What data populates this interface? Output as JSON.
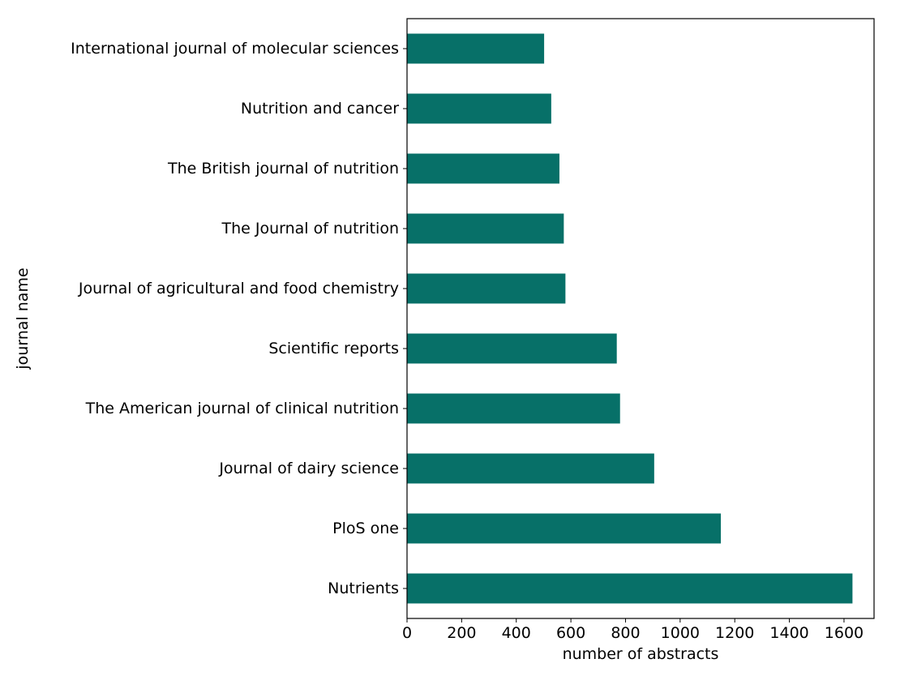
{
  "chart_data": {
    "type": "bar",
    "orientation": "horizontal",
    "title": "",
    "xlabel": "number of abstracts",
    "ylabel": "journal name",
    "xlim": [
      0,
      1710
    ],
    "xticks": [
      0,
      200,
      400,
      600,
      800,
      1000,
      1200,
      1400,
      1600
    ],
    "grid": false,
    "bar_color": "#077068",
    "categories": [
      "International journal of molecular sciences",
      "Nutrition and cancer",
      "The British journal of nutrition",
      "The Journal of nutrition",
      "Journal of agricultural and food chemistry",
      "Scientific reports",
      "The American journal of clinical nutrition",
      "Journal of dairy science",
      "PloS one",
      "Nutrients"
    ],
    "values": [
      502,
      528,
      558,
      574,
      580,
      768,
      780,
      905,
      1149,
      1631
    ]
  }
}
